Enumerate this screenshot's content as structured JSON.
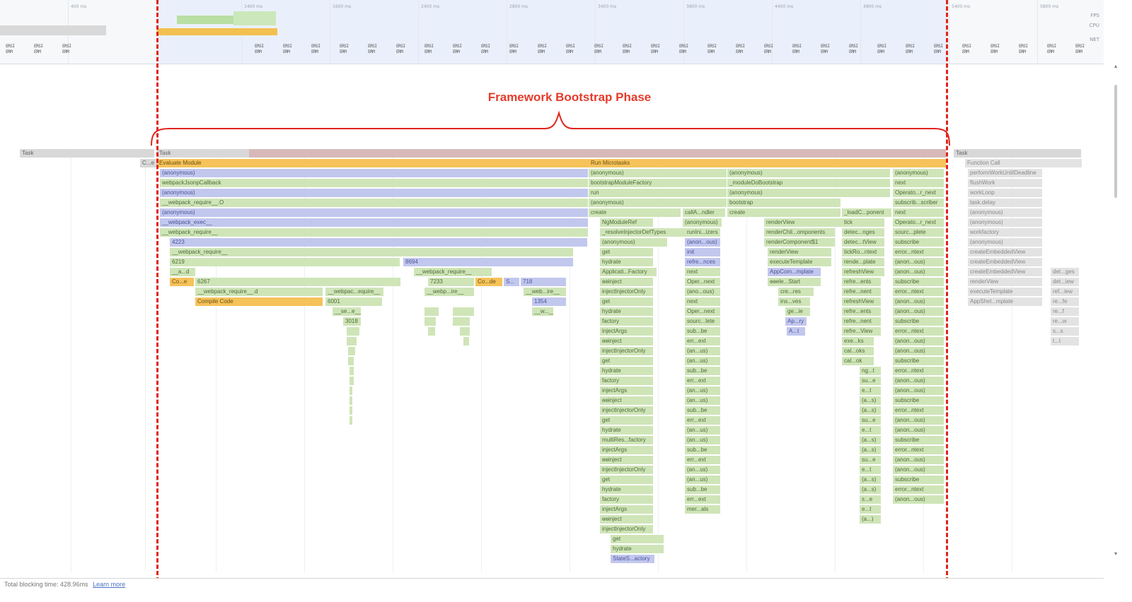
{
  "overview": {
    "ticks": [
      "400 ms",
      "1400 ms",
      "1600 ms",
      "2400 ms",
      "2800 ms",
      "3400 ms",
      "3800 ms",
      "4400 ms",
      "4800 ms",
      "5400 ms",
      "5800 ms"
    ],
    "labels": {
      "fps": "FPS",
      "cpu": "CPU",
      "net": "NET"
    },
    "screenshot_text": "ERSI\nERM"
  },
  "annotation": {
    "title": "Framework Bootstrap Phase",
    "color": "#e53b2b"
  },
  "flame": {
    "left_task": "Task",
    "main_task": "Task",
    "right_task": "Task",
    "col1": [
      "C...e",
      "Evaluate Module",
      "(anonymous)",
      "webpackJsonpCallback",
      "(anonymous)",
      "__webpack_require__.O",
      "(anonymous)",
      "__webpack_exec__",
      "__webpack_require__",
      "4223",
      "__webpack_require__",
      "6219",
      "__a...d",
      "Co...e",
      "6267",
      "__webpack_require__.d",
      "Compile Code"
    ],
    "col1_extra": {
      "n8694": "8694",
      "req2": "__webpack_require__",
      "n7233": "7233",
      "code2": "Co...de",
      "s_": "S...",
      "n718": "718",
      "wreq3": "__webpac...equire__",
      "wreq4": "__webp...ire__",
      "wreq5": "__web...ire__",
      "n6001": "6001",
      "n1354": "1354",
      "sre": "__se...e__",
      "w_": "__w...__",
      "n3018": "3018"
    },
    "col2": [
      "Run Microtasks",
      "(anonymous)",
      "bootstrapModuleFactory",
      "run",
      "(anonymous)",
      "create",
      "NgModuleRef",
      "_resolveInjectorDefTypes",
      "(anonymous)",
      "get",
      "hydrate",
      "Applicati...Factory",
      "ɵɵinject",
      "injectInjectorOnly",
      "get",
      "hydrate",
      "factory",
      "injectArgs",
      "ɵɵinject",
      "injectInjectorOnly",
      "get",
      "hydrate",
      "factory",
      "injectArgs",
      "ɵɵinject",
      "injectInjectorOnly",
      "get",
      "hydrate",
      "multiRes...factory",
      "injectArgs",
      "ɵɵinject",
      "injectInjectorOnly",
      "get",
      "hydrate",
      "factory",
      "injectArgs",
      "ɵɵinject",
      "injectInjectorOnly",
      "get",
      "hydrate",
      "StateS...actory"
    ],
    "col2b": [
      "callA...ndler",
      "(anonymous)",
      "runIni...izers",
      "(anon...ous)",
      "init",
      "refre...nces",
      "next",
      "Oper...next",
      "(ano...ous)",
      "next",
      "Oper...next",
      "sourc...lete",
      "sub...be",
      "err...ext",
      "(an...us)",
      "(an...us)",
      "sub...be",
      "err...ext",
      "(an...us)",
      "(an...us)",
      "sub...be",
      "err...ext",
      "(an...us)",
      "(an...us)",
      "sub...be",
      "err...ext",
      "(an...us)",
      "(an...us)",
      "sub...be",
      "err...ext",
      "mer...als"
    ],
    "col3": [
      "(anonymous)",
      "_moduleDoBootstrap",
      "(anonymous)",
      "bootstrap",
      "create",
      "renderView",
      "renderChil...omponents",
      "renderComponent$1",
      "renderView",
      "executeTemplate",
      "AppCom...mplate",
      "ɵɵele...Start",
      "cre...res",
      "ins...ves",
      "ge...ie",
      "Ap...ry",
      "A...t"
    ],
    "col4": [
      "_loadC...ponent",
      "tick",
      "detec...nges",
      "detec...tView",
      "tickRo...ntext",
      "rende...plate",
      "refreshView",
      "refre...ents",
      "refre...nent",
      "refreshView",
      "refre...ents",
      "refre...nent",
      "refre...View",
      "exe...ks",
      "cal...oks",
      "cal...ok",
      "ng...t",
      "su...e",
      "e...t",
      "(a...s)",
      "(a...s)",
      "su...e",
      "e...t",
      "(a...s)",
      "(a...s)",
      "su...e",
      "e...t",
      "(a...s)",
      "(a...s)",
      "s...e",
      "e...t",
      "(a...)"
    ],
    "col5": [
      "(anonymous)",
      "next",
      "Operato...r_next",
      "subscrib...scriber",
      "next",
      "Operato...r_next",
      "sourc...plete",
      "subscribe",
      "error...ntext",
      "(anon...ous)",
      "(anon...ous)",
      "subscribe",
      "error...ntext",
      "(anon...ous)",
      "(anon...ous)",
      "subscribe",
      "error...ntext",
      "(anon...ous)",
      "(anon...ous)",
      "subscribe",
      "error...ntext",
      "(anon...ous)",
      "(anon...ous)",
      "subscribe",
      "error...ntext",
      "(anon...ous)",
      "(anon...ous)",
      "subscribe",
      "error...ntext",
      "(anon...ous)",
      "(anon...ous)",
      "subscribe",
      "error...ntext",
      "(anon...ous)"
    ],
    "col6": [
      "Function Call",
      "performWorkUntilDeadline",
      "flushWork",
      "workLoop",
      "task.delay",
      "(anonymous)",
      "(anonymous)",
      "workfactory",
      "(anonymous)",
      "createEmbeddedView",
      "createEmbeddedView",
      "createEmbeddedView",
      "renderView",
      "executeTemplate",
      "AppShel...mplate"
    ],
    "col6b": [
      "det...ges",
      "det...iew",
      "ref...iew",
      "re...fe",
      "re...f",
      "re...w",
      "s...s",
      "t...t"
    ]
  },
  "status": {
    "tbt": "Total blocking time: 428.96ms",
    "learn_more": "Learn more"
  }
}
